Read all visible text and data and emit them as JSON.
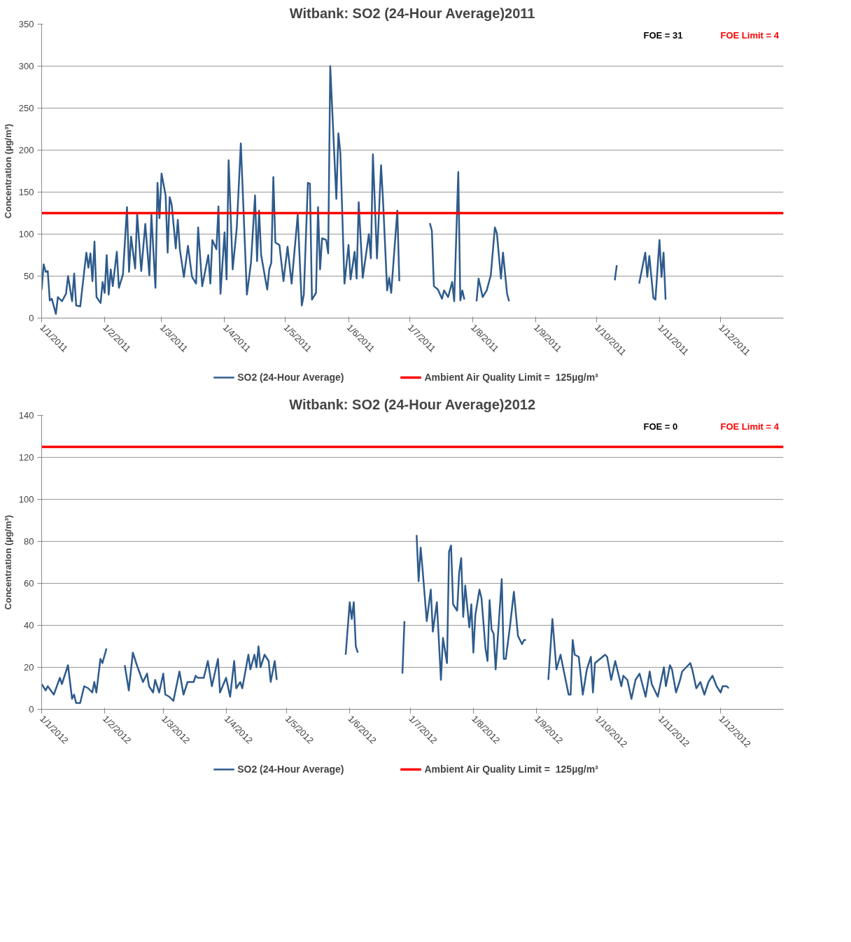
{
  "chart_data": [
    {
      "type": "line",
      "title": "Witbank: SO2 (24-Hour Average)2011",
      "ylabel": "Concentration (µg/m³)",
      "annotations": [
        "FOE = 31",
        "FOE Limit = 4"
      ],
      "x": [
        "2011-01-01",
        "2011-01-02",
        "2011-01-03",
        "2011-01-04",
        "2011-01-05",
        "2011-01-06",
        "2011-01-08",
        "2011-01-09",
        "2011-01-11",
        "2011-01-13",
        "2011-01-14",
        "2011-01-16",
        "2011-01-17",
        "2011-01-18",
        "2011-01-20",
        "2011-01-23",
        "2011-01-24",
        "2011-01-25",
        "2011-01-26",
        "2011-01-27",
        "2011-01-28",
        "2011-01-30",
        "2011-01-31",
        "2011-02-01",
        "2011-02-02",
        "2011-02-03",
        "2011-02-04",
        "2011-02-05",
        "2011-02-07",
        "2011-02-08",
        "2011-02-10",
        "2011-02-12",
        "2011-02-13",
        "2011-02-14",
        "2011-02-16",
        "2011-02-17",
        "2011-02-19",
        "2011-02-21",
        "2011-02-23",
        "2011-02-24",
        "2011-02-26",
        "2011-02-27",
        "2011-02-28",
        "2011-03-01",
        "2011-03-03",
        "2011-03-04",
        "2011-03-05",
        "2011-03-06",
        "2011-03-08",
        "2011-03-09",
        "2011-03-10",
        "2011-03-12",
        "2011-03-14",
        "2011-03-16",
        "2011-03-18",
        "2011-03-19",
        "2011-03-21",
        "2011-03-24",
        "2011-03-25",
        "2011-03-26",
        "2011-03-28",
        "2011-03-29",
        "2011-03-30",
        "2011-04-01",
        "2011-04-02",
        "2011-04-03",
        "2011-04-05",
        "2011-04-07",
        "2011-04-09",
        "2011-04-12",
        "2011-04-14",
        "2011-04-16",
        "2011-04-17",
        "2011-04-18",
        "2011-04-19",
        "2011-04-22",
        "2011-04-23",
        "2011-04-24",
        "2011-04-25",
        "2011-04-26",
        "2011-04-28",
        "2011-04-30",
        "2011-05-02",
        "2011-05-04",
        "2011-05-07",
        "2011-05-09",
        "2011-05-10",
        "2011-05-12",
        "2011-05-13",
        "2011-05-14",
        "2011-05-16",
        "2011-05-17",
        "2011-05-18",
        "2011-05-19",
        "2011-05-21",
        "2011-05-22",
        "2011-05-23",
        "2011-05-26",
        "2011-05-27",
        "2011-05-28",
        "2011-05-30",
        "2011-06-01",
        "2011-06-02",
        "2011-06-04",
        "2011-06-05",
        "2011-06-06",
        "2011-06-08",
        "2011-06-11",
        "2011-06-12",
        "2011-06-13",
        "2011-06-15",
        "2011-06-17",
        "2011-06-18",
        "2011-06-20",
        "2011-06-21",
        "2011-06-22",
        "2011-06-25",
        "2011-06-26",
        "2011-07-01",
        "2011-07-11",
        "2011-07-12",
        "2011-07-13",
        "2011-07-15",
        "2011-07-17",
        "2011-07-18",
        "2011-07-20",
        "2011-07-22",
        "2011-07-23",
        "2011-07-25",
        "2011-07-26",
        "2011-07-27",
        "2011-07-28",
        "2011-07-31",
        "2011-08-03",
        "2011-08-04",
        "2011-08-06",
        "2011-08-08",
        "2011-08-10",
        "2011-08-12",
        "2011-08-13",
        "2011-08-15",
        "2011-08-16",
        "2011-08-18",
        "2011-08-19",
        "2011-09-15",
        "2011-10-10",
        "2011-10-11",
        "2011-10-16",
        "2011-10-22",
        "2011-10-25",
        "2011-10-26",
        "2011-10-27",
        "2011-10-29",
        "2011-10-30",
        "2011-11-01",
        "2011-11-02",
        "2011-11-03",
        "2011-11-04"
      ],
      "series": [
        {
          "name": "SO2 (24-Hour Average)",
          "color": "#2e5b8c",
          "values": [
            34,
            64,
            55,
            56,
            21,
            23,
            5,
            25,
            20,
            29,
            50,
            20,
            53,
            15,
            14,
            78,
            60,
            77,
            44,
            91,
            25,
            18,
            43,
            30,
            75,
            28,
            58,
            38,
            79,
            36,
            52,
            132,
            55,
            97,
            59,
            124,
            56,
            112,
            51,
            123,
            36,
            161,
            119,
            172,
            146,
            78,
            144,
            135,
            83,
            117,
            82,
            49,
            86,
            49,
            41,
            108,
            38,
            75,
            41,
            93,
            82,
            133,
            29,
            102,
            46,
            188,
            58,
            107,
            208,
            28,
            66,
            146,
            68,
            128,
            75,
            34,
            58,
            66,
            168,
            90,
            87,
            44,
            85,
            41,
            123,
            15,
            28,
            161,
            160,
            22,
            30,
            132,
            58,
            95,
            93,
            77,
            300,
            142,
            220,
            196,
            41,
            87,
            46,
            79,
            47,
            138,
            48,
            100,
            71,
            195,
            71,
            182,
            139,
            33,
            48,
            30,
            128,
            44,
            null,
            113,
            104,
            38,
            34,
            23,
            33,
            25,
            43,
            20,
            174,
            21,
            33,
            22,
            null,
            20,
            47,
            25,
            33,
            51,
            108,
            101,
            47,
            78,
            29,
            20,
            null,
            45,
            63,
            null,
            41,
            78,
            49,
            74,
            24,
            22,
            93,
            49,
            78,
            22
          ]
        }
      ],
      "ref_lines": [
        {
          "axis": "y",
          "value": 125,
          "label": "Ambient Air Quality Limit =  125µg/m³",
          "color": "#ff0000"
        }
      ],
      "xlim": [
        "2011-01-01",
        "2012-01-01"
      ],
      "xticks": [
        {
          "value": "2011-01-01",
          "label": "1/1/2011"
        },
        {
          "value": "2011-02-01",
          "label": "1/2/2011"
        },
        {
          "value": "2011-03-01",
          "label": "1/3/2011"
        },
        {
          "value": "2011-04-01",
          "label": "1/4/2011"
        },
        {
          "value": "2011-05-01",
          "label": "1/5/2011"
        },
        {
          "value": "2011-06-01",
          "label": "1/6/2011"
        },
        {
          "value": "2011-07-01",
          "label": "1/7/2011"
        },
        {
          "value": "2011-08-01",
          "label": "1/8/2011"
        },
        {
          "value": "2011-09-01",
          "label": "1/9/2011"
        },
        {
          "value": "2011-10-01",
          "label": "1/10/2011"
        },
        {
          "value": "2011-11-01",
          "label": "1/11/2011"
        },
        {
          "value": "2011-12-01",
          "label": "1/12/2011"
        }
      ],
      "ylim": [
        0,
        350
      ],
      "yticks": [
        0,
        50,
        100,
        150,
        200,
        250,
        300,
        350
      ],
      "grid": "y",
      "legend": "bottom"
    },
    {
      "type": "line",
      "title": "Witbank: SO2 (24-Hour Average)2012",
      "ylabel": "Concentration (µg/m³)",
      "annotations": [
        "FOE = 0",
        "FOE Limit = 4"
      ],
      "x": [
        "2012-01-01",
        "2012-01-03",
        "2012-01-04",
        "2012-01-07",
        "2012-01-10",
        "2012-01-11",
        "2012-01-14",
        "2012-01-16",
        "2012-01-17",
        "2012-01-18",
        "2012-01-20",
        "2012-01-22",
        "2012-01-24",
        "2012-01-26",
        "2012-01-27",
        "2012-01-28",
        "2012-01-30",
        "2012-01-31",
        "2012-02-02",
        "2012-02-06",
        "2012-02-11",
        "2012-02-13",
        "2012-02-15",
        "2012-02-17",
        "2012-02-20",
        "2012-02-22",
        "2012-02-23",
        "2012-02-25",
        "2012-02-26",
        "2012-02-28",
        "2012-03-01",
        "2012-03-02",
        "2012-03-04",
        "2012-03-06",
        "2012-03-09",
        "2012-03-11",
        "2012-03-13",
        "2012-03-16",
        "2012-03-17",
        "2012-03-18",
        "2012-03-21",
        "2012-03-23",
        "2012-03-25",
        "2012-03-28",
        "2012-03-29",
        "2012-04-01",
        "2012-04-03",
        "2012-04-05",
        "2012-04-06",
        "2012-04-08",
        "2012-04-09",
        "2012-04-12",
        "2012-04-13",
        "2012-04-15",
        "2012-04-16",
        "2012-04-17",
        "2012-04-18",
        "2012-04-20",
        "2012-04-22",
        "2012-04-23",
        "2012-04-25",
        "2012-04-26",
        "2012-05-10",
        "2012-05-30",
        "2012-06-01",
        "2012-06-02",
        "2012-06-03",
        "2012-06-04",
        "2012-06-05",
        "2012-06-15",
        "2012-06-27",
        "2012-06-28",
        "2012-06-30",
        "2012-07-04",
        "2012-07-05",
        "2012-07-06",
        "2012-07-07",
        "2012-07-09",
        "2012-07-11",
        "2012-07-12",
        "2012-07-14",
        "2012-07-16",
        "2012-07-17",
        "2012-07-19",
        "2012-07-20",
        "2012-07-21",
        "2012-07-22",
        "2012-07-24",
        "2012-07-25",
        "2012-07-26",
        "2012-07-27",
        "2012-07-28",
        "2012-07-30",
        "2012-07-31",
        "2012-08-01",
        "2012-08-02",
        "2012-08-04",
        "2012-08-05",
        "2012-08-07",
        "2012-08-08",
        "2012-08-09",
        "2012-08-10",
        "2012-08-11",
        "2012-08-12",
        "2012-08-15",
        "2012-08-16",
        "2012-08-17",
        "2012-08-19",
        "2012-08-21",
        "2012-08-23",
        "2012-08-25",
        "2012-08-26",
        "2012-08-27",
        "2012-09-02",
        "2012-09-07",
        "2012-09-09",
        "2012-09-11",
        "2012-09-13",
        "2012-09-17",
        "2012-09-18",
        "2012-09-19",
        "2012-09-20",
        "2012-09-22",
        "2012-09-24",
        "2012-09-26",
        "2012-09-28",
        "2012-09-29",
        "2012-09-30",
        "2012-10-05",
        "2012-10-06",
        "2012-10-08",
        "2012-10-10",
        "2012-10-13",
        "2012-10-14",
        "2012-10-16",
        "2012-10-18",
        "2012-10-20",
        "2012-10-22",
        "2012-10-25",
        "2012-10-27",
        "2012-10-28",
        "2012-10-30",
        "2012-10-31",
        "2012-11-03",
        "2012-11-04",
        "2012-11-06",
        "2012-11-07",
        "2012-11-09",
        "2012-11-11",
        "2012-11-12",
        "2012-11-16",
        "2012-11-17",
        "2012-11-19",
        "2012-11-21",
        "2012-11-23",
        "2012-11-25",
        "2012-11-27",
        "2012-11-29",
        "2012-12-01",
        "2012-12-02",
        "2012-12-04",
        "2012-12-05"
      ],
      "series": [
        {
          "name": "SO2 (24-Hour Average)",
          "color": "#2e5b8c",
          "values": [
            12,
            9,
            11,
            7,
            15,
            12,
            21,
            5,
            7,
            3,
            3,
            11,
            10,
            8,
            13,
            8,
            24,
            22,
            29,
            null,
            21,
            9,
            27,
            21,
            13,
            17,
            11,
            8,
            14,
            8,
            17,
            7,
            6,
            4,
            18,
            7,
            13,
            13,
            16,
            15,
            15,
            23,
            11,
            24,
            8,
            15,
            6,
            23,
            10,
            13,
            10,
            26,
            19,
            26,
            20,
            30,
            20,
            26,
            23,
            13,
            23,
            14,
            null,
            26,
            51,
            43,
            51,
            30,
            27,
            null,
            17,
            42,
            null,
            83,
            61,
            77,
            66,
            42,
            57,
            37,
            51,
            14,
            34,
            22,
            75,
            78,
            50,
            47,
            65,
            72,
            44,
            59,
            39,
            50,
            27,
            45,
            57,
            53,
            29,
            23,
            52,
            38,
            36,
            19,
            62,
            24,
            24,
            39,
            56,
            35,
            31,
            33,
            33,
            null,
            14,
            43,
            19,
            26,
            7,
            7,
            33,
            26,
            25,
            7,
            19,
            25,
            8,
            22,
            26,
            25,
            14,
            23,
            11,
            16,
            14,
            5,
            14,
            17,
            6,
            18,
            12,
            8,
            6,
            20,
            11,
            21,
            19,
            8,
            14,
            18,
            22,
            19,
            10,
            13,
            7,
            13,
            16,
            11,
            8,
            11,
            11,
            10
          ]
        }
      ],
      "ref_lines": [
        {
          "axis": "y",
          "value": 125,
          "label": "Ambient Air Quality Limit =  125µg/m³",
          "color": "#ff0000"
        }
      ],
      "xlim": [
        "2012-01-01",
        "2013-01-01"
      ],
      "xticks": [
        {
          "value": "2012-01-01",
          "label": "1/1/2012"
        },
        {
          "value": "2012-02-01",
          "label": "1/2/2012"
        },
        {
          "value": "2012-03-01",
          "label": "1/3/2012"
        },
        {
          "value": "2012-04-01",
          "label": "1/4/2012"
        },
        {
          "value": "2012-05-01",
          "label": "1/5/2012"
        },
        {
          "value": "2012-06-01",
          "label": "1/6/2012"
        },
        {
          "value": "2012-07-01",
          "label": "1/7/2012"
        },
        {
          "value": "2012-08-01",
          "label": "1/8/2012"
        },
        {
          "value": "2012-09-01",
          "label": "1/9/2012"
        },
        {
          "value": "2012-10-01",
          "label": "1/10/2012"
        },
        {
          "value": "2012-11-01",
          "label": "1/11/2012"
        },
        {
          "value": "2012-12-01",
          "label": "1/12/2012"
        }
      ],
      "ylim": [
        0,
        140
      ],
      "yticks": [
        0,
        20,
        40,
        60,
        80,
        100,
        120,
        140
      ],
      "grid": "y",
      "legend": "bottom"
    }
  ]
}
